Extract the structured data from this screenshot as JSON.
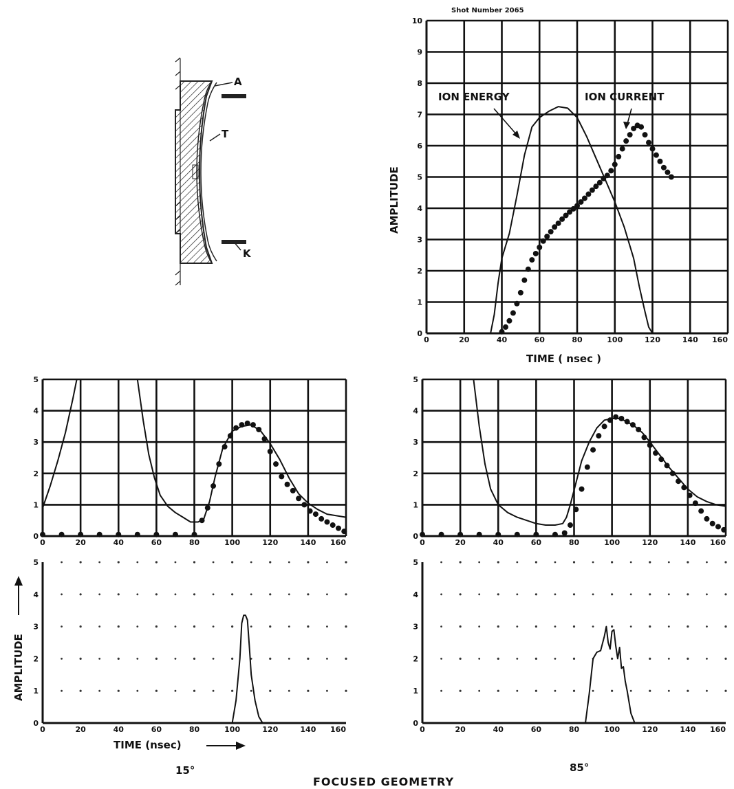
{
  "figure": {
    "caption": "FOCUSED GEOMETRY",
    "left_angle": "15°",
    "right_angle": "85°",
    "diagram_labels": {
      "a": "A",
      "t": "T",
      "k": "K"
    }
  },
  "chart_data": [
    {
      "id": "top",
      "type": "line",
      "title": "Shot Number 2065",
      "xlabel": "TIME ( nsec )",
      "ylabel": "AMPLITUDE",
      "xlim": [
        0,
        160
      ],
      "ylim": [
        0,
        10
      ],
      "x_ticks": [
        "0",
        "20",
        "40",
        "60",
        "80",
        "100",
        "120",
        "140",
        "160"
      ],
      "y_ticks": [
        "0",
        "1",
        "2",
        "3",
        "4",
        "5",
        "6",
        "7",
        "8",
        "9",
        "10"
      ],
      "x_tick_values": [
        0,
        20,
        40,
        60,
        80,
        100,
        120,
        140,
        160
      ],
      "y_tick_values": [
        0,
        1,
        2,
        3,
        4,
        5,
        6,
        7,
        8,
        9,
        10
      ],
      "grid": "solid",
      "annotations": [
        "ION ENERGY",
        "ION CURRENT"
      ],
      "series": [
        {
          "name": "ION ENERGY",
          "style": "line",
          "x": [
            0,
            34,
            36,
            38,
            40,
            44,
            48,
            52,
            56,
            60,
            65,
            70,
            75,
            80,
            85,
            90,
            95,
            100,
            105,
            110,
            113,
            116,
            118,
            120,
            160
          ],
          "y": [
            0,
            0,
            0.6,
            1.6,
            2.4,
            3.2,
            4.4,
            5.7,
            6.6,
            6.9,
            7.1,
            7.25,
            7.2,
            6.9,
            6.3,
            5.6,
            4.9,
            4.2,
            3.4,
            2.4,
            1.5,
            0.7,
            0.2,
            0,
            0
          ]
        },
        {
          "name": "ION CURRENT",
          "style": "dots",
          "x": [
            40,
            42,
            44,
            46,
            48,
            50,
            52,
            54,
            56,
            58,
            60,
            62,
            64,
            66,
            68,
            70,
            72,
            74,
            76,
            78,
            80,
            82,
            84,
            86,
            88,
            90,
            92,
            94,
            96,
            98,
            100,
            102,
            104,
            106,
            108,
            110,
            112,
            114,
            116,
            118,
            120,
            122,
            124,
            126,
            128,
            130
          ],
          "y": [
            0.05,
            0.2,
            0.4,
            0.65,
            0.95,
            1.3,
            1.7,
            2.05,
            2.35,
            2.55,
            2.75,
            2.95,
            3.1,
            3.25,
            3.4,
            3.52,
            3.65,
            3.77,
            3.88,
            3.98,
            4.08,
            4.2,
            4.32,
            4.45,
            4.58,
            4.7,
            4.82,
            4.95,
            5.05,
            5.2,
            5.4,
            5.65,
            5.9,
            6.15,
            6.35,
            6.55,
            6.65,
            6.6,
            6.35,
            6.1,
            5.9,
            5.7,
            5.5,
            5.3,
            5.15,
            5.0
          ]
        }
      ]
    },
    {
      "id": "left-mid",
      "type": "line",
      "xlim": [
        0,
        160
      ],
      "ylim": [
        0,
        5
      ],
      "x_ticks": [
        "0",
        "20",
        "40",
        "60",
        "80",
        "100",
        "120",
        "140",
        "160"
      ],
      "y_ticks": [
        "0",
        "1",
        "2",
        "3",
        "4",
        "5"
      ],
      "x_tick_values": [
        0,
        20,
        40,
        60,
        80,
        100,
        120,
        140,
        160
      ],
      "y_tick_values": [
        0,
        1,
        2,
        3,
        4,
        5
      ],
      "grid": "solid",
      "series": [
        {
          "style": "line",
          "x": [
            0,
            4,
            8,
            12,
            16,
            18
          ],
          "y": [
            0.9,
            1.6,
            2.4,
            3.3,
            4.4,
            5.0
          ]
        },
        {
          "style": "line",
          "x": [
            50,
            53,
            56,
            59,
            62,
            66,
            70,
            74,
            78,
            82,
            85,
            88,
            91,
            95,
            100,
            105,
            110,
            115,
            120,
            125,
            130,
            135,
            140,
            145,
            150,
            155,
            160
          ],
          "y": [
            5.0,
            3.7,
            2.6,
            1.85,
            1.3,
            0.95,
            0.75,
            0.6,
            0.45,
            0.45,
            0.55,
            1.1,
            1.9,
            2.8,
            3.35,
            3.5,
            3.55,
            3.35,
            2.95,
            2.45,
            1.85,
            1.35,
            1.05,
            0.85,
            0.7,
            0.65,
            0.6
          ]
        },
        {
          "style": "dots",
          "x": [
            0,
            10,
            20,
            30,
            40,
            50,
            60,
            70,
            80,
            84,
            87,
            90,
            93,
            96,
            99,
            102,
            105,
            108,
            111,
            114,
            117,
            120,
            123,
            126,
            129,
            132,
            135,
            138,
            141,
            144,
            147,
            150,
            153,
            156,
            159
          ],
          "y": [
            0.05,
            0.05,
            0.05,
            0.05,
            0.05,
            0.05,
            0.05,
            0.05,
            0.05,
            0.5,
            0.9,
            1.6,
            2.3,
            2.85,
            3.2,
            3.45,
            3.55,
            3.6,
            3.55,
            3.4,
            3.1,
            2.7,
            2.3,
            1.9,
            1.65,
            1.45,
            1.2,
            1.0,
            0.8,
            0.7,
            0.55,
            0.45,
            0.35,
            0.25,
            0.15
          ]
        }
      ]
    },
    {
      "id": "right-mid",
      "type": "line",
      "xlim": [
        0,
        160
      ],
      "ylim": [
        0,
        5
      ],
      "x_ticks": [
        "0",
        "20",
        "40",
        "60",
        "80",
        "100",
        "120",
        "140",
        "160"
      ],
      "y_ticks": [
        "0",
        "1",
        "2",
        "3",
        "4",
        "5"
      ],
      "x_tick_values": [
        0,
        20,
        40,
        60,
        80,
        100,
        120,
        140,
        160
      ],
      "y_tick_values": [
        0,
        1,
        2,
        3,
        4,
        5
      ],
      "grid": "solid",
      "series": [
        {
          "style": "line",
          "x": [
            27,
            30,
            33,
            36,
            40,
            45,
            50,
            55,
            60,
            65,
            70,
            74,
            76,
            78,
            81,
            84,
            88,
            92,
            96,
            100,
            104,
            108,
            112,
            116,
            120,
            125,
            130,
            135,
            140,
            145,
            150,
            155,
            160
          ],
          "y": [
            5.0,
            3.5,
            2.3,
            1.5,
            1.0,
            0.75,
            0.6,
            0.5,
            0.4,
            0.35,
            0.35,
            0.4,
            0.6,
            1.0,
            1.7,
            2.4,
            3.0,
            3.45,
            3.7,
            3.75,
            3.75,
            3.65,
            3.5,
            3.3,
            3.0,
            2.6,
            2.2,
            1.85,
            1.5,
            1.25,
            1.1,
            1.0,
            0.95
          ]
        },
        {
          "style": "dots",
          "x": [
            0,
            10,
            20,
            30,
            40,
            50,
            60,
            70,
            75,
            78,
            81,
            84,
            87,
            90,
            93,
            96,
            99,
            102,
            105,
            108,
            111,
            114,
            117,
            120,
            123,
            126,
            129,
            132,
            135,
            138,
            141,
            144,
            147,
            150,
            153,
            156,
            159
          ],
          "y": [
            0.05,
            0.05,
            0.05,
            0.05,
            0.05,
            0.05,
            0.05,
            0.05,
            0.1,
            0.35,
            0.85,
            1.5,
            2.2,
            2.75,
            3.2,
            3.5,
            3.7,
            3.8,
            3.75,
            3.65,
            3.55,
            3.4,
            3.15,
            2.9,
            2.65,
            2.45,
            2.25,
            2.0,
            1.75,
            1.55,
            1.3,
            1.05,
            0.8,
            0.55,
            0.4,
            0.3,
            0.2
          ]
        }
      ]
    },
    {
      "id": "left-bottom",
      "type": "line",
      "xlabel": "TIME (nsec)",
      "ylabel": "AMPLITUDE",
      "xlim": [
        0,
        160
      ],
      "ylim": [
        0,
        5
      ],
      "x_ticks": [
        "0",
        "20",
        "40",
        "60",
        "80",
        "100",
        "120",
        "140",
        "160"
      ],
      "y_ticks": [
        "0",
        "1",
        "2",
        "3",
        "4",
        "5"
      ],
      "x_tick_values": [
        0,
        20,
        40,
        60,
        80,
        100,
        120,
        140,
        160
      ],
      "y_tick_values": [
        0,
        1,
        2,
        3,
        4,
        5
      ],
      "grid": "dotted",
      "series": [
        {
          "style": "line",
          "x": [
            0,
            100,
            102,
            104,
            105,
            106,
            107,
            108,
            109,
            110,
            112,
            114,
            116,
            160
          ],
          "y": [
            0,
            0,
            0.7,
            2.0,
            3.1,
            3.35,
            3.35,
            3.2,
            2.4,
            1.5,
            0.7,
            0.2,
            0,
            0
          ]
        }
      ]
    },
    {
      "id": "right-bottom",
      "type": "line",
      "xlim": [
        0,
        160
      ],
      "ylim": [
        0,
        5
      ],
      "x_ticks": [
        "0",
        "20",
        "40",
        "60",
        "80",
        "100",
        "120",
        "140",
        "160"
      ],
      "y_ticks": [
        "0",
        "1",
        "2",
        "3",
        "4",
        "5"
      ],
      "x_tick_values": [
        0,
        20,
        40,
        60,
        80,
        100,
        120,
        140,
        160
      ],
      "y_tick_values": [
        0,
        1,
        2,
        3,
        4,
        5
      ],
      "grid": "dotted",
      "series": [
        {
          "style": "line",
          "x": [
            0,
            86,
            88,
            90,
            92,
            94,
            96,
            97,
            98,
            99,
            100,
            101,
            102,
            103,
            104,
            105,
            106,
            107,
            108,
            110,
            112,
            160
          ],
          "y": [
            0,
            0,
            0.9,
            2.0,
            2.2,
            2.25,
            2.7,
            3.0,
            2.5,
            2.3,
            2.85,
            2.9,
            2.4,
            2.0,
            2.35,
            1.7,
            1.75,
            1.3,
            1.0,
            0.3,
            0,
            0
          ]
        }
      ]
    }
  ]
}
